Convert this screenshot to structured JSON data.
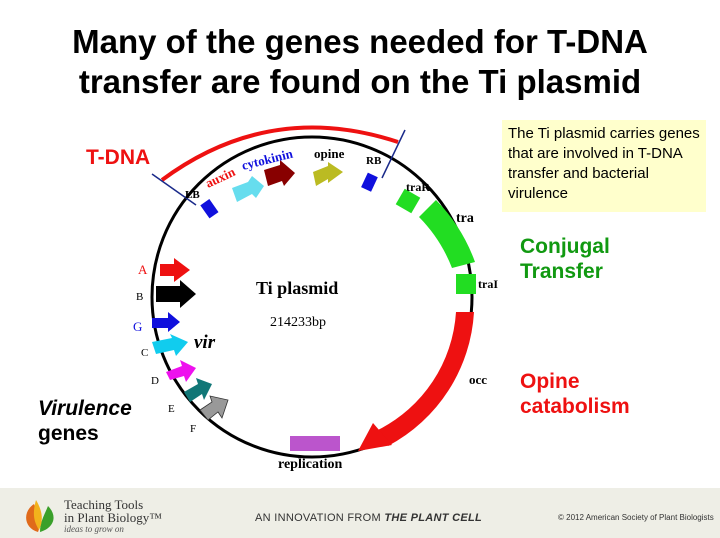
{
  "title_line1": "Many of the genes needed for T-DNA",
  "title_line2": "transfer are found on the Ti plasmid",
  "note": "The Ti plasmid carries genes that are involved in T-DNA transfer and bacterial virulence",
  "tdna_label": "T-DNA",
  "plasmid": {
    "name": "Ti plasmid",
    "size": "214233bp"
  },
  "genes": {
    "lb": "LB",
    "rb": "RB",
    "auxin": "auxin",
    "cytokinin": "cytokinin",
    "opine": "opine",
    "traR": "traR",
    "tra": "tra",
    "traI": "traI",
    "occ": "occ",
    "replication": "replication",
    "vir": "vir",
    "vir_a": "A",
    "vir_b": "B",
    "vir_g": "G",
    "vir_c": "C",
    "vir_d": "D",
    "vir_e": "E",
    "vir_f": "F"
  },
  "side_labels": {
    "conjugal_1": "Conjugal",
    "conjugal_2": "Transfer",
    "opine_1": "Opine",
    "opine_2": "catabolism",
    "virulence_1": "Virulence",
    "virulence_2": "genes"
  },
  "footer": {
    "brand_line1": "Teaching Tools",
    "brand_line2": "in Plant Biology™",
    "brand_tagline": "ideas to grow on",
    "innovation_prefix": "AN INNOVATION FROM",
    "innovation_journal": "THE PLANT CELL",
    "copyright": "© 2012 American Society of Plant Biologists"
  },
  "colors": {
    "conjugal": "#119911",
    "opine": "#ee1111",
    "tdna_arc": "#ee1111",
    "note_bg": "#ffffcc"
  }
}
